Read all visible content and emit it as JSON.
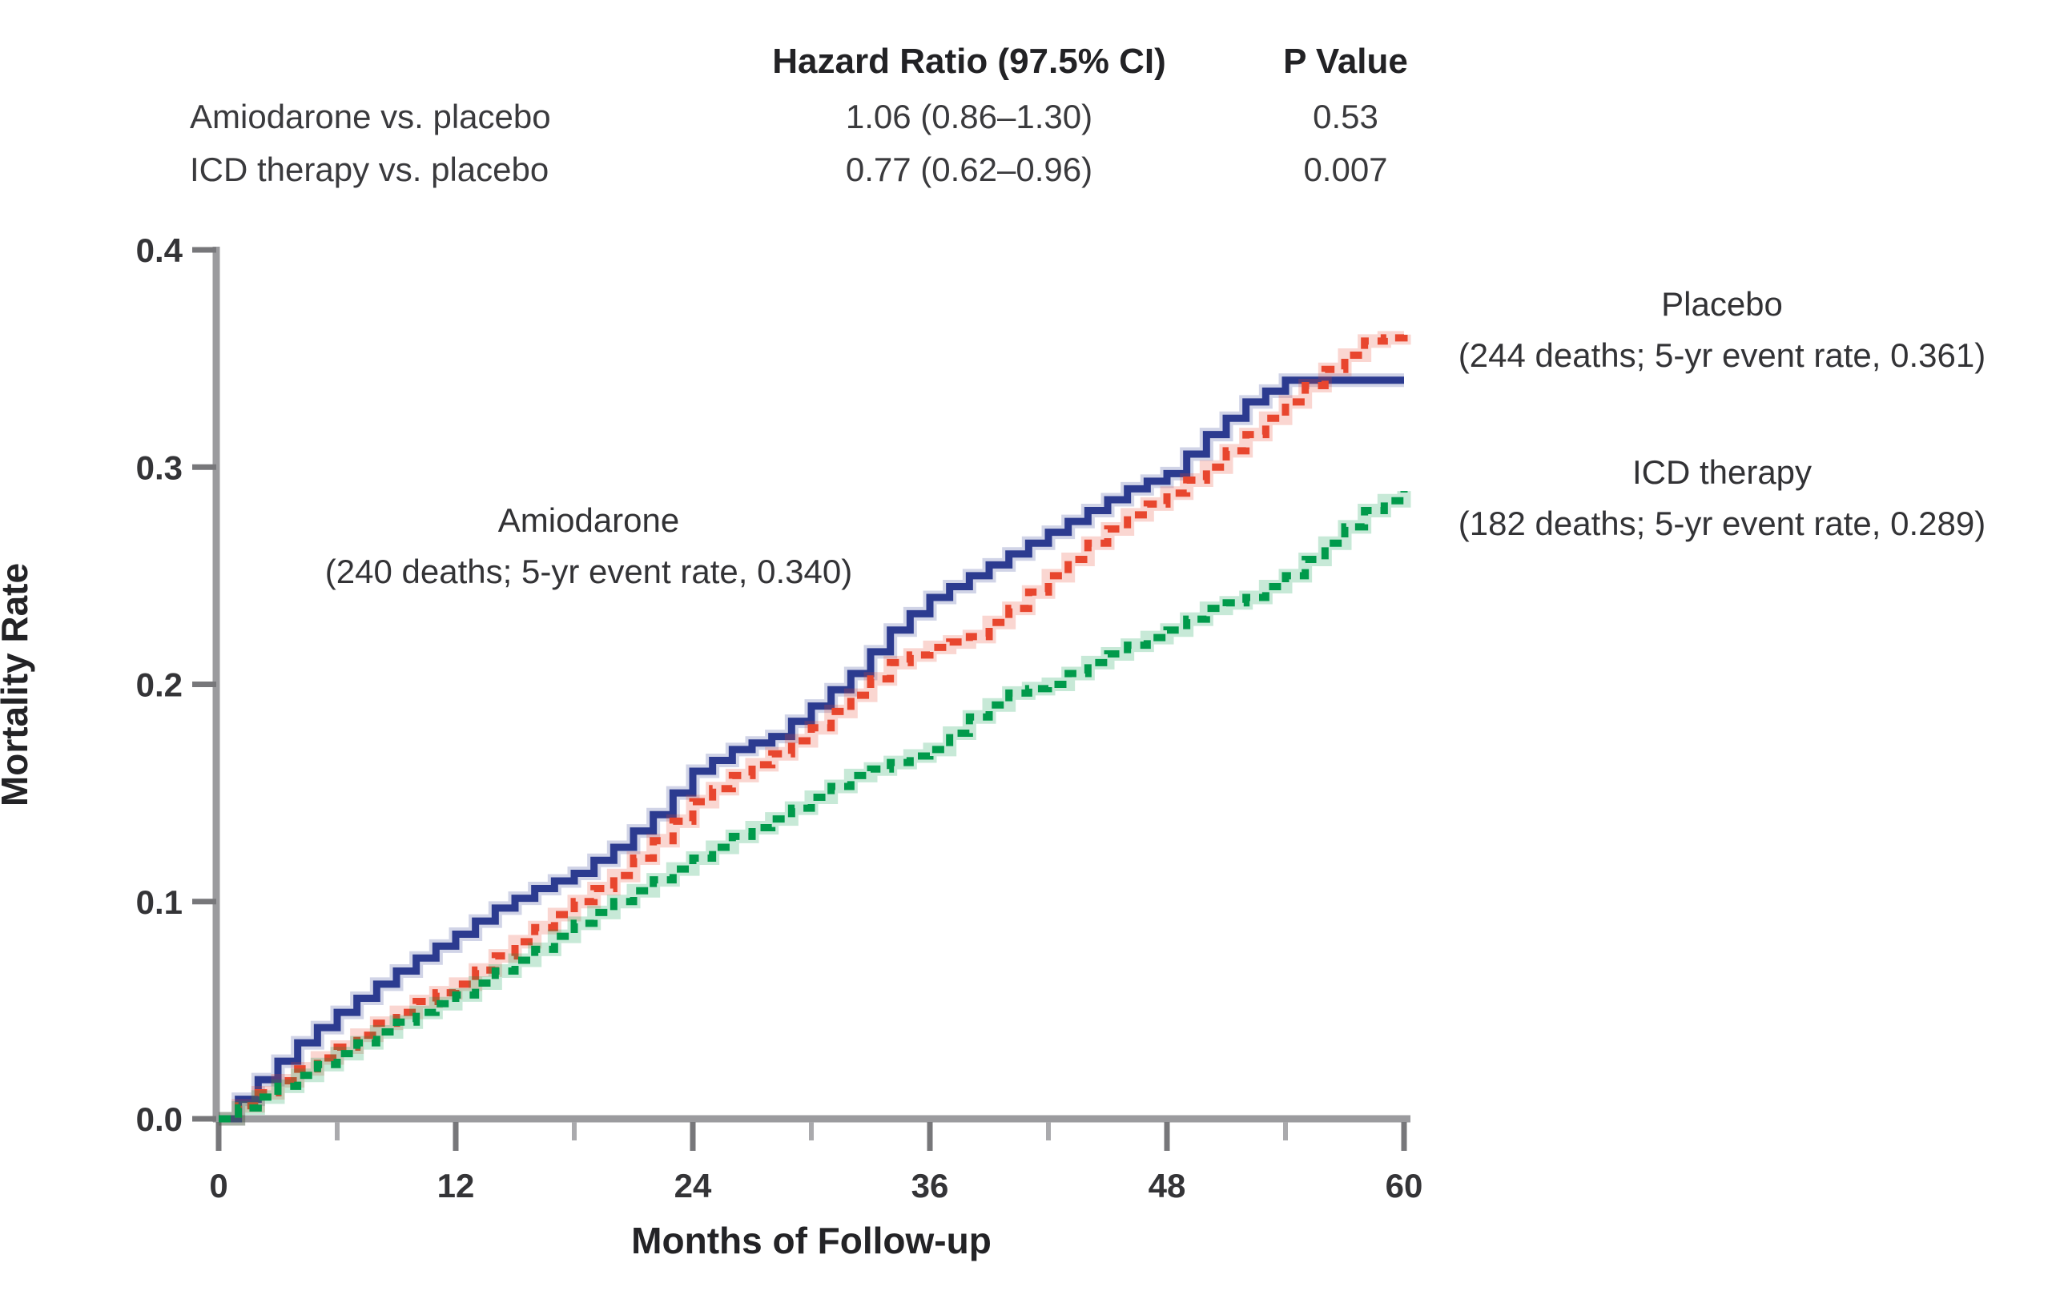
{
  "table": {
    "hr_header": "Hazard Ratio (97.5% CI)",
    "p_header": "P Value",
    "rows": [
      {
        "label": "Amiodarone vs. placebo",
        "hr": "1.06 (0.86–1.30)",
        "p": "0.53"
      },
      {
        "label": "ICD therapy vs. placebo",
        "hr": "0.77 (0.62–0.96)",
        "p": "0.007"
      }
    ]
  },
  "chart_data": {
    "type": "line",
    "subtype": "kaplan-meier-step",
    "xlabel": "Months of Follow-up",
    "ylabel": "Mortality Rate",
    "xlim": [
      0,
      60
    ],
    "ylim": [
      0,
      0.4
    ],
    "grid": false,
    "x_ticks": [
      {
        "v": 0,
        "label": "0"
      },
      {
        "v": 12,
        "label": "12"
      },
      {
        "v": 24,
        "label": "24"
      },
      {
        "v": 36,
        "label": "36"
      },
      {
        "v": 48,
        "label": "48"
      },
      {
        "v": 60,
        "label": "60"
      }
    ],
    "x_minor_ticks": [
      6,
      18,
      30,
      42,
      54
    ],
    "y_ticks": [
      {
        "v": 0.0,
        "label": "0.0"
      },
      {
        "v": 0.1,
        "label": "0.1"
      },
      {
        "v": 0.2,
        "label": "0.2"
      },
      {
        "v": 0.3,
        "label": "0.3"
      },
      {
        "v": 0.4,
        "label": "0.4"
      }
    ],
    "x": [
      0,
      2,
      4,
      6,
      8,
      10,
      12,
      14,
      16,
      18,
      20,
      22,
      24,
      26,
      28,
      30,
      32,
      34,
      36,
      38,
      40,
      42,
      44,
      46,
      48,
      50,
      52,
      54,
      56,
      58,
      60
    ],
    "series": [
      {
        "name": "Amiodarone",
        "annotation": "(240 deaths; 5-yr event rate, 0.340)",
        "color": "#2c3b90",
        "style": "solid",
        "values": [
          0,
          0.018,
          0.035,
          0.049,
          0.062,
          0.074,
          0.085,
          0.097,
          0.106,
          0.113,
          0.125,
          0.14,
          0.16,
          0.17,
          0.176,
          0.19,
          0.205,
          0.225,
          0.24,
          0.25,
          0.26,
          0.27,
          0.28,
          0.29,
          0.297,
          0.315,
          0.33,
          0.34,
          0.34,
          0.34,
          0.34
        ]
      },
      {
        "name": "Placebo",
        "annotation": "(244 deaths; 5-yr event rate, 0.361)",
        "color": "#e8462e",
        "style": "dashed",
        "values": [
          0,
          0.012,
          0.023,
          0.033,
          0.044,
          0.054,
          0.062,
          0.075,
          0.088,
          0.1,
          0.112,
          0.128,
          0.146,
          0.158,
          0.168,
          0.18,
          0.195,
          0.21,
          0.217,
          0.222,
          0.235,
          0.25,
          0.265,
          0.278,
          0.288,
          0.3,
          0.315,
          0.33,
          0.345,
          0.358,
          0.361
        ]
      },
      {
        "name": "ICD therapy",
        "annotation": "(182 deaths; 5-yr event rate, 0.289)",
        "color": "#009a4b",
        "style": "dashed",
        "values": [
          0,
          0.01,
          0.02,
          0.03,
          0.04,
          0.049,
          0.057,
          0.068,
          0.078,
          0.09,
          0.1,
          0.11,
          0.12,
          0.13,
          0.138,
          0.148,
          0.158,
          0.164,
          0.17,
          0.185,
          0.196,
          0.2,
          0.21,
          0.218,
          0.225,
          0.235,
          0.24,
          0.25,
          0.265,
          0.28,
          0.289
        ]
      }
    ],
    "colors": {
      "axis": "#9b9b9e",
      "tick": "#77777a",
      "minor_tick": "#aaaaad",
      "tick_label": "#343437"
    }
  }
}
